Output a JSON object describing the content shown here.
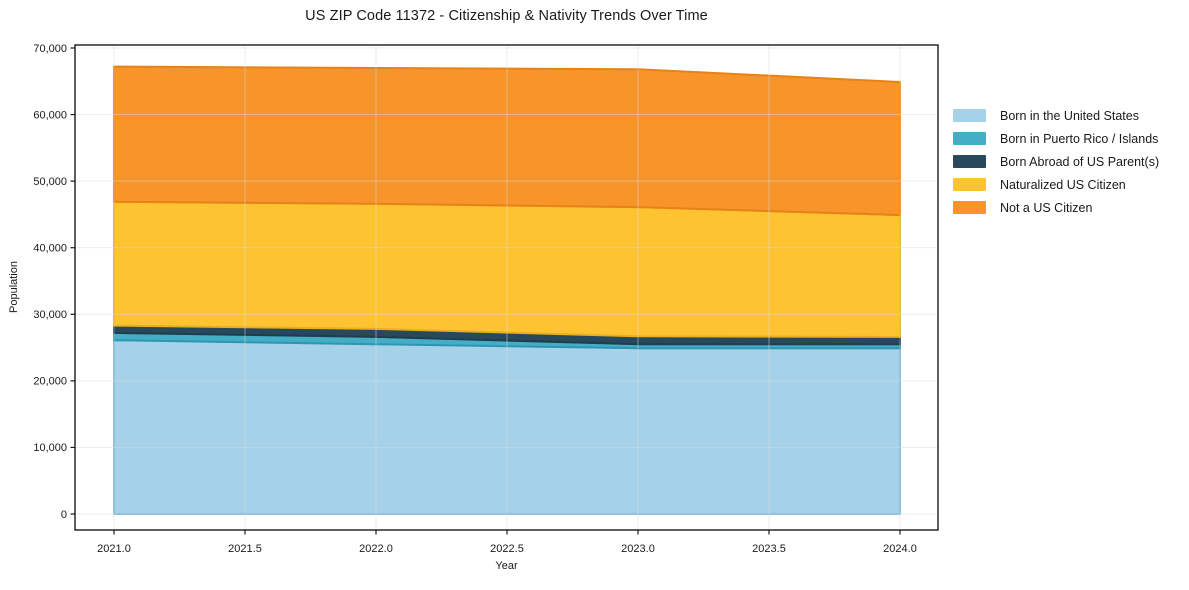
{
  "figure": {
    "background": "#ffffff",
    "axes_border_color": "#1a1a1a",
    "grid_color": "#dcdcdc"
  },
  "title": "US ZIP Code 11372 - Citizenship & Nativity Trends Over Time",
  "chart_data": {
    "type": "area",
    "stacked": true,
    "title": "US ZIP Code 11372 - Citizenship & Nativity Trends Over Time",
    "xlabel": "Year",
    "ylabel": "Population",
    "x": [
      2021,
      2022,
      2023,
      2024
    ],
    "xlim": [
      2020.85,
      2024.15
    ],
    "ylim": [
      0,
      70000
    ],
    "grid": true,
    "legend_position": "right",
    "x_ticks": [
      {
        "v": 2021.0,
        "label": "2021.0"
      },
      {
        "v": 2021.5,
        "label": "2021.5"
      },
      {
        "v": 2022.0,
        "label": "2022.0"
      },
      {
        "v": 2022.5,
        "label": "2022.5"
      },
      {
        "v": 2023.0,
        "label": "2023.0"
      },
      {
        "v": 2023.5,
        "label": "2023.5"
      },
      {
        "v": 2024.0,
        "label": "2024.0"
      }
    ],
    "y_ticks": [
      {
        "v": 0,
        "label": "0"
      },
      {
        "v": 10000,
        "label": "10,000"
      },
      {
        "v": 20000,
        "label": "20,000"
      },
      {
        "v": 30000,
        "label": "30,000"
      },
      {
        "v": 40000,
        "label": "40,000"
      },
      {
        "v": 50000,
        "label": "50,000"
      },
      {
        "v": 60000,
        "label": "60,000"
      },
      {
        "v": 70000,
        "label": "70,000"
      }
    ],
    "series": [
      {
        "name": "Born in the United States",
        "color": "#a5d2e8",
        "edge": "#79b8d9",
        "values": [
          26100,
          25500,
          24900,
          24900
        ]
      },
      {
        "name": "Born in Puerto Rico / Islands",
        "color": "#45aec7",
        "edge": "#2e96b2",
        "values": [
          1100,
          1100,
          600,
          600
        ]
      },
      {
        "name": "Born Abroad of US Parent(s)",
        "color": "#28495c",
        "edge": "#1f3d4d",
        "values": [
          1100,
          1200,
          1200,
          1100
        ]
      },
      {
        "name": "Naturalized US Citizen",
        "color": "#fdc330",
        "edge": "#eaaf1e",
        "values": [
          18600,
          18800,
          19400,
          18300
        ]
      },
      {
        "name": "Not a US Citizen",
        "color": "#f7942a",
        "edge": "#e78218",
        "values": [
          20300,
          20400,
          20700,
          20000
        ]
      }
    ],
    "stacked_totals": [
      67200,
      67000,
      66800,
      64900
    ]
  }
}
